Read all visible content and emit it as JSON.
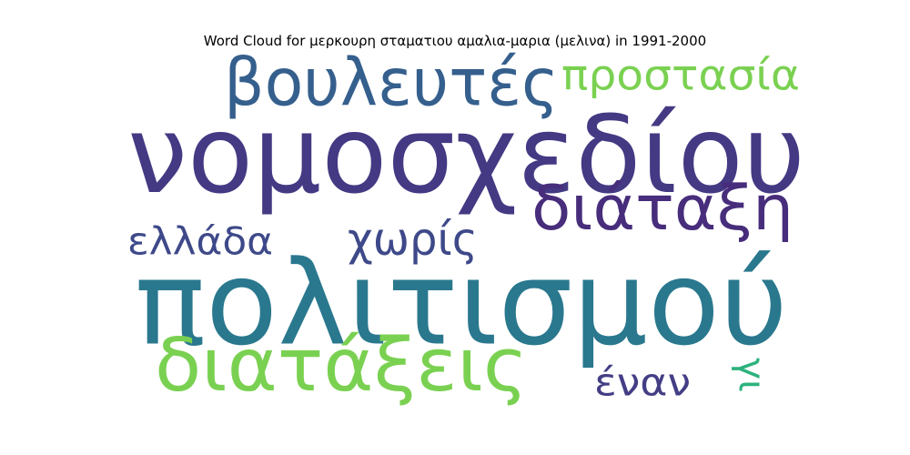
{
  "title": "Word Cloud for μερκουρη σταματιου αμαλια-μαρια (μελινα) in 1991-2000",
  "words": [
    {
      "text": "νομοσχεδίου",
      "color": "#443983"
    },
    {
      "text": "πολιτισμού",
      "color": "#2a788e"
    },
    {
      "text": "βουλευτές",
      "color": "#355f8d"
    },
    {
      "text": "διάταξη",
      "color": "#472d7b"
    },
    {
      "text": "διατάξεις",
      "color": "#7ad151"
    },
    {
      "text": "προστασία",
      "color": "#7ad151"
    },
    {
      "text": "χωρίς",
      "color": "#3e4989"
    },
    {
      "text": "ελλάδα",
      "color": "#3e4989"
    },
    {
      "text": "έναν",
      "color": "#433e85"
    },
    {
      "text": "γι",
      "color": "#2db27d"
    }
  ]
}
